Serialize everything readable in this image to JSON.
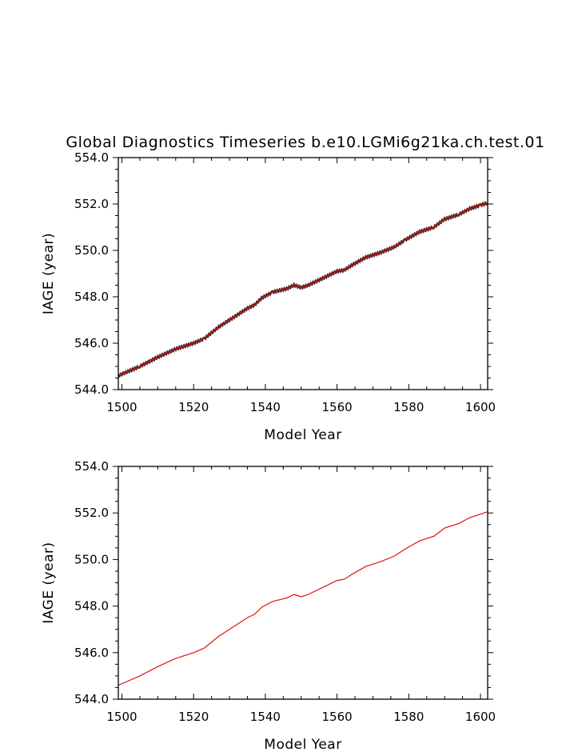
{
  "title": "Global Diagnostics Timeseries b.e10.LGMi6g21ka.ch.test.01",
  "chart_data": [
    {
      "type": "line",
      "xlabel": "Model Year",
      "ylabel": "IAGE (year)",
      "xlim": [
        1499,
        1602
      ],
      "ylim": [
        544.0,
        554.0
      ],
      "xticks": [
        "1500",
        "1520",
        "1540",
        "1560",
        "1580",
        "1600"
      ],
      "yticks": [
        "544.0",
        "546.0",
        "548.0",
        "550.0",
        "552.0",
        "554.0"
      ],
      "legend": "none",
      "grid": false,
      "series": [
        {
          "kind": "monthly",
          "color": "#e01010",
          "outline_color": "#222222",
          "x": [
            1499,
            1505,
            1510,
            1515,
            1520,
            1523,
            1527,
            1531,
            1535,
            1537,
            1539,
            1542,
            1546,
            1548,
            1550,
            1552,
            1556,
            1560,
            1562,
            1564,
            1568,
            1572,
            1576,
            1579,
            1583,
            1587,
            1590,
            1594,
            1597,
            1600,
            1602
          ],
          "values": [
            544.6,
            545.0,
            545.4,
            545.75,
            546.0,
            546.2,
            546.7,
            547.1,
            547.5,
            547.65,
            547.95,
            548.2,
            548.35,
            548.5,
            548.4,
            548.5,
            548.8,
            549.1,
            549.15,
            549.35,
            549.7,
            549.9,
            550.15,
            550.45,
            550.8,
            551.0,
            551.35,
            551.55,
            551.8,
            551.95,
            552.05
          ]
        }
      ]
    },
    {
      "type": "line",
      "xlabel": "Model Year",
      "ylabel": "IAGE (year)",
      "xlim": [
        1499,
        1602
      ],
      "ylim": [
        544.0,
        554.0
      ],
      "xticks": [
        "1500",
        "1520",
        "1540",
        "1560",
        "1580",
        "1600"
      ],
      "yticks": [
        "544.0",
        "546.0",
        "548.0",
        "550.0",
        "552.0",
        "554.0"
      ],
      "legend": "none",
      "grid": false,
      "series": [
        {
          "kind": "annual",
          "color": "#e01010",
          "x": [
            1499,
            1505,
            1510,
            1515,
            1520,
            1523,
            1527,
            1531,
            1535,
            1537,
            1539,
            1542,
            1546,
            1548,
            1550,
            1552,
            1556,
            1560,
            1562,
            1564,
            1568,
            1572,
            1576,
            1579,
            1583,
            1587,
            1590,
            1594,
            1597,
            1600,
            1602
          ],
          "values": [
            544.6,
            545.0,
            545.4,
            545.75,
            546.0,
            546.2,
            546.7,
            547.1,
            547.5,
            547.65,
            547.95,
            548.2,
            548.35,
            548.5,
            548.4,
            548.5,
            548.8,
            549.1,
            549.15,
            549.35,
            549.7,
            549.9,
            550.15,
            550.45,
            550.8,
            551.0,
            551.35,
            551.55,
            551.8,
            551.95,
            552.05
          ]
        }
      ]
    }
  ]
}
